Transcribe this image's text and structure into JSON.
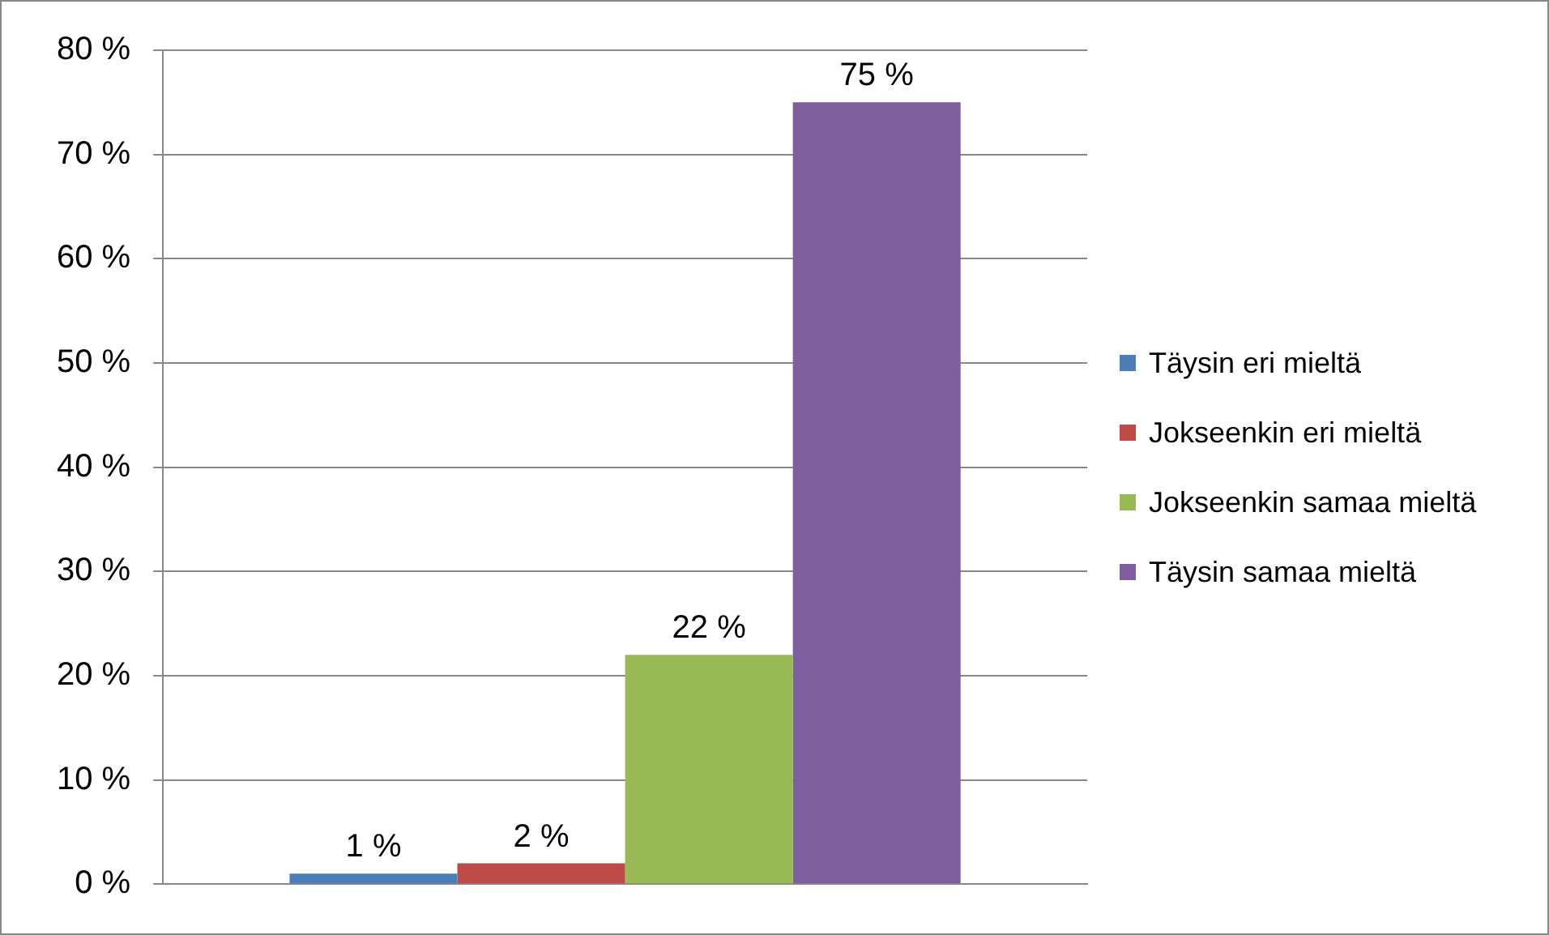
{
  "chart_data": {
    "type": "bar",
    "categories": [
      null
    ],
    "series": [
      {
        "name": "Täysin eri mieltä",
        "color": "#4a7ebb",
        "values": [
          1
        ],
        "value_labels": [
          "1 %"
        ]
      },
      {
        "name": "Jokseenkin eri mieltä",
        "color": "#be4b48",
        "values": [
          2
        ],
        "value_labels": [
          "2 %"
        ]
      },
      {
        "name": "Jokseenkin samaa mieltä",
        "color": "#98b954",
        "values": [
          22
        ],
        "value_labels": [
          "22 %"
        ]
      },
      {
        "name": "Täysin samaa mieltä",
        "color": "#7d5fa0",
        "values": [
          75
        ],
        "value_labels": [
          "75 %"
        ]
      }
    ],
    "ylim": [
      0,
      80
    ],
    "yticks": [
      {
        "value": 0,
        "label": "0 %"
      },
      {
        "value": 10,
        "label": "10 %"
      },
      {
        "value": 20,
        "label": "20 %"
      },
      {
        "value": 30,
        "label": "30 %"
      },
      {
        "value": 40,
        "label": "40 %"
      },
      {
        "value": 50,
        "label": "50 %"
      },
      {
        "value": 60,
        "label": "60 %"
      },
      {
        "value": 70,
        "label": "70 %"
      },
      {
        "value": 80,
        "label": "80 %"
      }
    ],
    "grid": "y",
    "legend": "right"
  }
}
